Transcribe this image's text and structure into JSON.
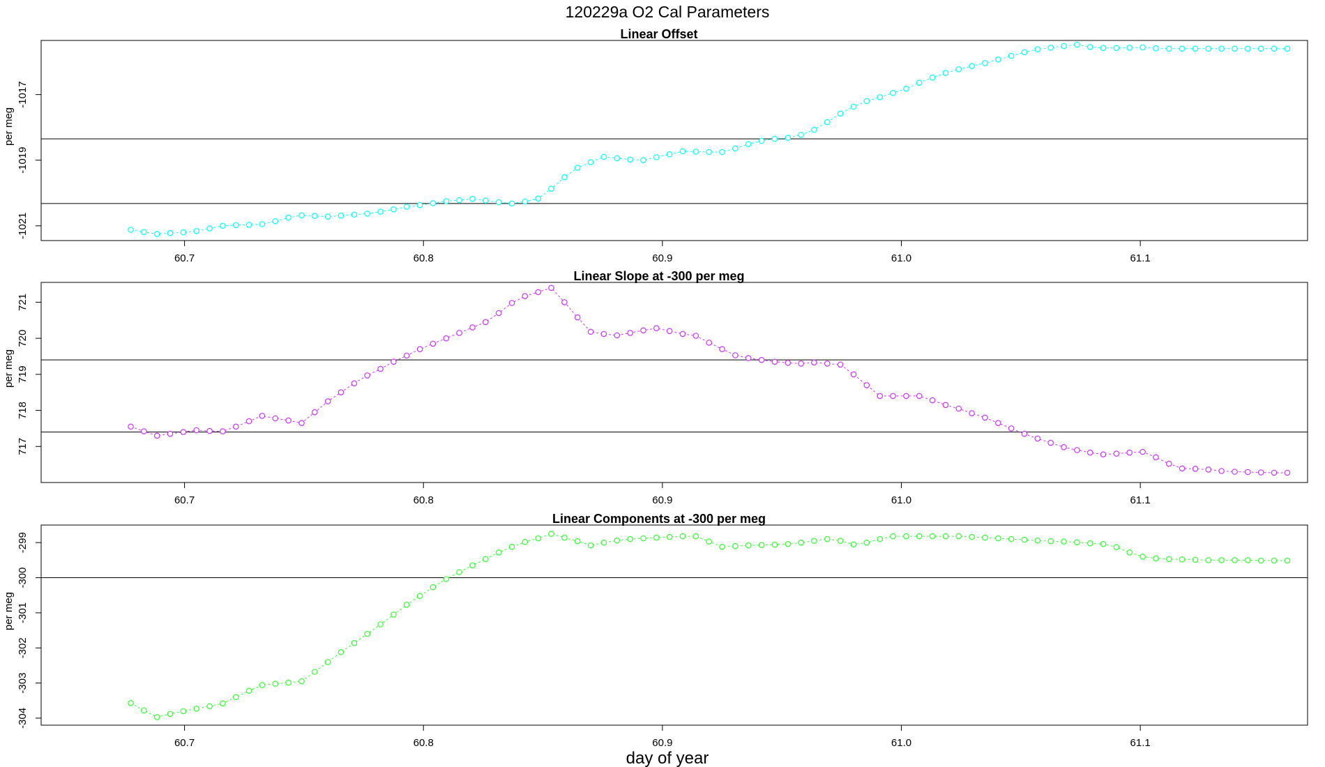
{
  "figure": {
    "title": "120229a   O2 Cal Parameters",
    "xlabel": "day of year"
  },
  "chart_data": [
    {
      "type": "line",
      "title": "Linear Offset",
      "ylabel": "per meg",
      "xlim": [
        60.64,
        61.17
      ],
      "ylim": [
        -1021.45,
        -1015.35
      ],
      "yticks": [
        -1021,
        -1019,
        -1017
      ],
      "xticks": [
        60.7,
        60.8,
        60.9,
        61.0,
        61.1
      ],
      "xtick_labels": [
        "60.7",
        "60.8",
        "60.9",
        "61.0",
        "61.1"
      ],
      "hlines": [
        -1018.35,
        -1020.32
      ],
      "color": "#00ffff",
      "x_start": 60.6775,
      "x_step": 0.0055,
      "values": [
        -1021.12,
        -1021.19,
        -1021.25,
        -1021.22,
        -1021.2,
        -1021.16,
        -1021.08,
        -1021.0,
        -1020.98,
        -1020.97,
        -1020.95,
        -1020.86,
        -1020.75,
        -1020.68,
        -1020.7,
        -1020.72,
        -1020.69,
        -1020.66,
        -1020.63,
        -1020.57,
        -1020.5,
        -1020.42,
        -1020.37,
        -1020.31,
        -1020.25,
        -1020.22,
        -1020.18,
        -1020.23,
        -1020.28,
        -1020.32,
        -1020.26,
        -1020.17,
        -1019.87,
        -1019.52,
        -1019.23,
        -1019.06,
        -1018.9,
        -1018.94,
        -1018.98,
        -1019.0,
        -1018.91,
        -1018.82,
        -1018.73,
        -1018.74,
        -1018.75,
        -1018.75,
        -1018.64,
        -1018.51,
        -1018.41,
        -1018.35,
        -1018.32,
        -1018.23,
        -1018.07,
        -1017.84,
        -1017.58,
        -1017.37,
        -1017.2,
        -1017.08,
        -1016.95,
        -1016.82,
        -1016.64,
        -1016.48,
        -1016.34,
        -1016.23,
        -1016.13,
        -1016.04,
        -1015.93,
        -1015.82,
        -1015.71,
        -1015.62,
        -1015.57,
        -1015.52,
        -1015.48,
        -1015.55,
        -1015.58,
        -1015.58,
        -1015.57,
        -1015.56,
        -1015.59,
        -1015.6,
        -1015.6,
        -1015.6,
        -1015.6,
        -1015.6,
        -1015.6,
        -1015.6,
        -1015.6,
        -1015.6,
        -1015.6
      ]
    },
    {
      "type": "line",
      "title": "Linear Slope at -300 per meg",
      "ylabel": "per meg",
      "xlim": [
        60.64,
        61.17
      ],
      "ylim": [
        716.0,
        721.55
      ],
      "yticks": [
        717,
        718,
        719,
        720,
        721
      ],
      "xticks": [
        60.7,
        60.8,
        60.9,
        61.0,
        61.1
      ],
      "xtick_labels": [
        "60.7",
        "60.8",
        "60.9",
        "61.0",
        "61.1"
      ],
      "hlines": [
        719.4,
        717.4
      ],
      "color": "#cc33ff",
      "x_start": 60.6775,
      "x_step": 0.0055,
      "values": [
        717.55,
        717.42,
        717.3,
        717.35,
        717.4,
        717.45,
        717.43,
        717.42,
        717.55,
        717.7,
        717.85,
        717.78,
        717.72,
        717.65,
        717.95,
        718.25,
        718.5,
        718.75,
        718.97,
        719.15,
        719.35,
        719.52,
        719.7,
        719.85,
        720.0,
        720.15,
        720.3,
        720.45,
        720.7,
        720.98,
        721.17,
        721.28,
        721.4,
        721.0,
        720.58,
        720.18,
        720.12,
        720.08,
        720.15,
        720.22,
        720.28,
        720.2,
        720.12,
        720.07,
        719.88,
        719.7,
        719.53,
        719.45,
        719.4,
        719.35,
        719.32,
        719.3,
        719.33,
        719.3,
        719.27,
        719.0,
        718.7,
        718.4,
        718.4,
        718.4,
        718.4,
        718.28,
        718.15,
        718.05,
        717.92,
        717.8,
        717.65,
        717.5,
        717.35,
        717.22,
        717.1,
        716.98,
        716.9,
        716.83,
        716.78,
        716.8,
        716.83,
        716.85,
        716.7,
        716.52,
        716.39,
        716.38,
        716.36,
        716.32,
        716.3,
        716.29,
        716.28,
        716.27,
        716.27
      ]
    },
    {
      "type": "line",
      "title": "Linear Components at -300 per meg",
      "ylabel": "per meg",
      "xlim": [
        60.64,
        61.17
      ],
      "ylim": [
        -304.2,
        -298.5
      ],
      "yticks": [
        -304,
        -303,
        -302,
        -301,
        -300,
        -299
      ],
      "xticks": [
        60.7,
        60.8,
        60.9,
        61.0,
        61.1
      ],
      "xtick_labels": [
        "60.7",
        "60.8",
        "60.9",
        "61.0",
        "61.1"
      ],
      "hlines": [
        -300.0
      ],
      "color": "#33ff33",
      "x_start": 60.6775,
      "x_step": 0.0055,
      "values": [
        -303.57,
        -303.78,
        -303.97,
        -303.88,
        -303.8,
        -303.73,
        -303.66,
        -303.58,
        -303.4,
        -303.22,
        -303.06,
        -303.02,
        -302.99,
        -302.95,
        -302.68,
        -302.4,
        -302.12,
        -301.86,
        -301.6,
        -301.33,
        -301.05,
        -300.77,
        -300.52,
        -300.27,
        -300.04,
        -299.84,
        -299.65,
        -299.47,
        -299.28,
        -299.12,
        -298.98,
        -298.88,
        -298.75,
        -298.86,
        -298.96,
        -299.08,
        -299.0,
        -298.94,
        -298.9,
        -298.88,
        -298.86,
        -298.84,
        -298.82,
        -298.82,
        -298.97,
        -299.12,
        -299.1,
        -299.08,
        -299.07,
        -299.06,
        -299.04,
        -299.0,
        -298.95,
        -298.9,
        -298.95,
        -299.05,
        -299.0,
        -298.9,
        -298.82,
        -298.82,
        -298.82,
        -298.82,
        -298.82,
        -298.82,
        -298.84,
        -298.86,
        -298.88,
        -298.9,
        -298.92,
        -298.94,
        -298.96,
        -298.97,
        -298.99,
        -299.02,
        -299.04,
        -299.13,
        -299.28,
        -299.4,
        -299.45,
        -299.47,
        -299.48,
        -299.49,
        -299.5,
        -299.5,
        -299.5,
        -299.5,
        -299.51,
        -299.51,
        -299.51
      ]
    }
  ]
}
